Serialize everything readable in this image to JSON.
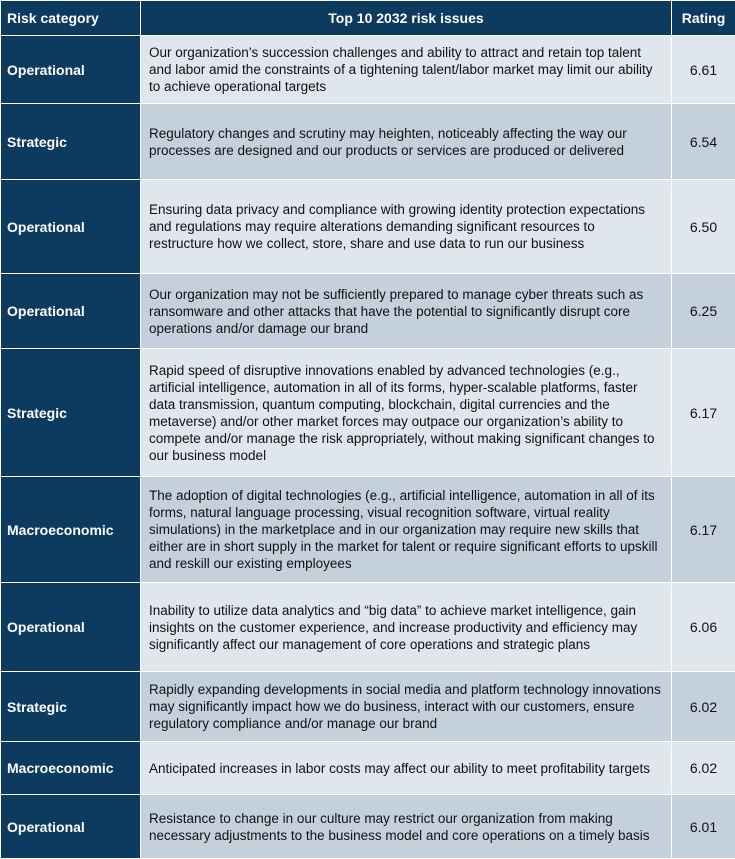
{
  "header": {
    "category": "Risk category",
    "issues": "Top 10 2032 risk issues",
    "rating": "Rating"
  },
  "rows": [
    {
      "category": "Operational",
      "issue": "Our organization’s succession challenges and ability to attract and retain top talent and labor amid the constraints of a tightening talent/labor market may limit our ability to achieve operational targets",
      "rating": "6.61"
    },
    {
      "category": "Strategic",
      "issue": "Regulatory changes and scrutiny may heighten, noticeably affecting the way our processes are designed and our products or services are produced or delivered",
      "rating": "6.54"
    },
    {
      "category": "Operational",
      "issue": "Ensuring data privacy and compliance with growing identity protection expectations and regulations may require alterations demanding significant resources to restructure how we collect, store, share and use data to run our business",
      "rating": "6.50"
    },
    {
      "category": "Operational",
      "issue": "Our organization may not be sufficiently prepared to manage cyber threats such as ransomware and other attacks that have the potential to significantly disrupt core operations and/or damage our brand",
      "rating": "6.25"
    },
    {
      "category": "Strategic",
      "issue": "Rapid speed of disruptive innovations enabled by advanced technologies (e.g., artificial intelligence, automation in all of its forms, hyper-scalable platforms, faster data transmission, quantum computing, blockchain, digital currencies and the metaverse) and/or other market forces may outpace our organization’s ability to compete and/or manage the risk appropriately, without making significant changes to our business model",
      "rating": "6.17"
    },
    {
      "category": "Macroeconomic",
      "issue": "The adoption of digital technologies (e.g., artificial intelligence, automation in all of its forms, natural language processing, visual recognition software, virtual reality simulations) in the marketplace and in our organization may require new skills that either are in short supply in the market for talent or require significant efforts to upskill and reskill our existing employees",
      "rating": "6.17"
    },
    {
      "category": "Operational",
      "issue": "Inability to utilize data analytics and “big data” to achieve market intelligence, gain insights on the customer experience, and increase productivity and efficiency may significantly affect our management of core operations and strategic plans",
      "rating": "6.06"
    },
    {
      "category": "Strategic",
      "issue": "Rapidly expanding developments in social media and platform technology innovations may significantly impact how we do business, interact with our customers, ensure regulatory compliance and/or manage our brand",
      "rating": "6.02"
    },
    {
      "category": "Macroeconomic",
      "issue": "Anticipated increases in labor costs may affect our ability to meet profitability targets",
      "rating": "6.02"
    },
    {
      "category": "Operational",
      "issue": "Resistance to change in our culture may restrict our organization from making necessary adjustments to the business model and core operations on a timely basis",
      "rating": "6.01"
    }
  ]
}
